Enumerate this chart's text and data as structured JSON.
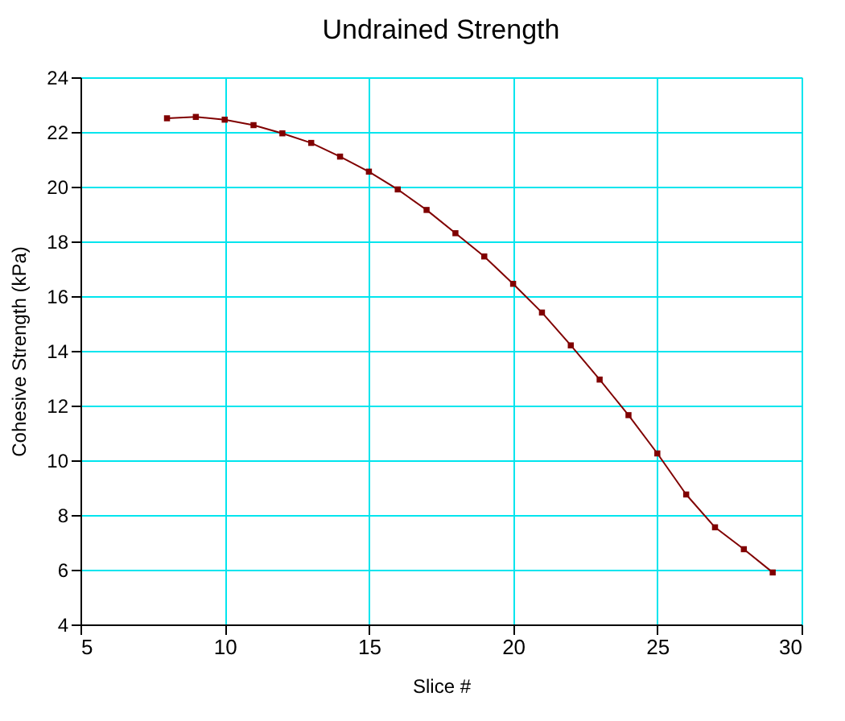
{
  "chart_data": {
    "type": "line",
    "title": "Undrained Strength",
    "xlabel": "Slice #",
    "ylabel": "Cohesive Strength (kPa)",
    "x": [
      8,
      9,
      10,
      11,
      12,
      13,
      14,
      15,
      16,
      17,
      18,
      19,
      20,
      21,
      22,
      23,
      24,
      25,
      26,
      27,
      28,
      29
    ],
    "series": [
      {
        "color": "#800000",
        "values": [
          22.5,
          22.55,
          22.45,
          22.25,
          21.95,
          21.6,
          21.1,
          20.55,
          19.9,
          19.15,
          18.3,
          17.45,
          16.45,
          15.4,
          14.2,
          12.95,
          11.65,
          10.25,
          8.75,
          7.55,
          6.75,
          5.9
        ]
      }
    ],
    "xlim": [
      5,
      30
    ],
    "xticks": [
      5,
      10,
      15,
      20,
      25,
      30
    ],
    "ylim": [
      4,
      24
    ],
    "yticks": [
      4,
      6,
      8,
      10,
      12,
      14,
      16,
      18,
      20,
      22,
      24
    ],
    "grid": true,
    "marker": "square",
    "line_style": "solid"
  }
}
